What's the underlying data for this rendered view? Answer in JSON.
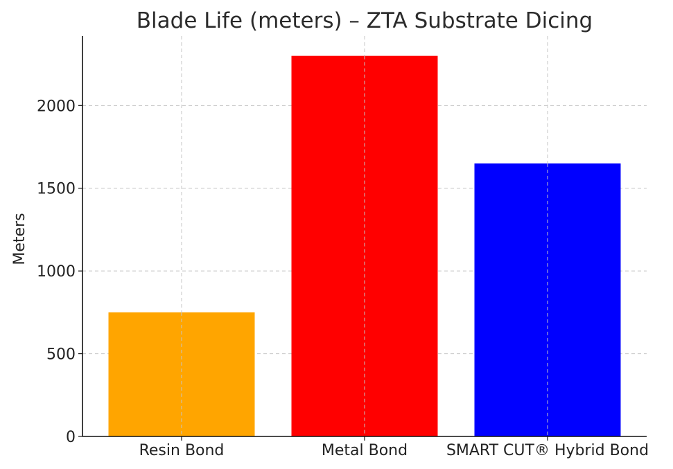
{
  "chart_data": {
    "type": "bar",
    "title": "Blade Life (meters) – ZTA Substrate Dicing",
    "xlabel": "",
    "ylabel": "Meters",
    "categories": [
      "Resin Bond",
      "Metal Bond",
      "SMART CUT® Hybrid Bond"
    ],
    "values": [
      750,
      2300,
      1650
    ],
    "colors": [
      "#FFA500",
      "#FF0000",
      "#0000FF"
    ],
    "ylim": [
      0,
      2420
    ],
    "yticks": [
      0,
      500,
      1000,
      1500,
      2000
    ],
    "grid": true,
    "legend": "none"
  }
}
